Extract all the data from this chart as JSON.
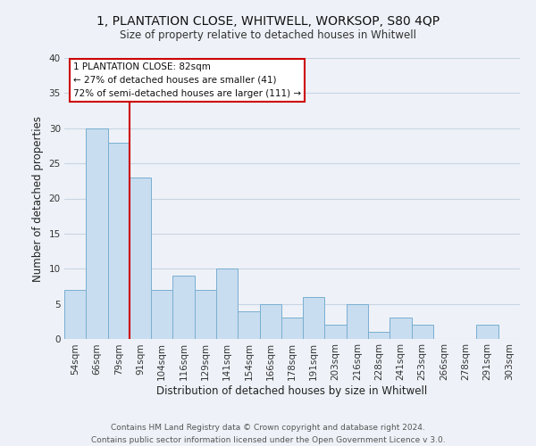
{
  "title_line1": "1, PLANTATION CLOSE, WHITWELL, WORKSOP, S80 4QP",
  "title_line2": "Size of property relative to detached houses in Whitwell",
  "xlabel": "Distribution of detached houses by size in Whitwell",
  "ylabel": "Number of detached properties",
  "footer_line1": "Contains HM Land Registry data © Crown copyright and database right 2024.",
  "footer_line2": "Contains public sector information licensed under the Open Government Licence v 3.0.",
  "bar_labels": [
    "54sqm",
    "66sqm",
    "79sqm",
    "91sqm",
    "104sqm",
    "116sqm",
    "129sqm",
    "141sqm",
    "154sqm",
    "166sqm",
    "178sqm",
    "191sqm",
    "203sqm",
    "216sqm",
    "228sqm",
    "241sqm",
    "253sqm",
    "266sqm",
    "278sqm",
    "291sqm",
    "303sqm"
  ],
  "bar_values": [
    7,
    30,
    28,
    23,
    7,
    9,
    7,
    10,
    4,
    5,
    3,
    6,
    2,
    5,
    1,
    3,
    2,
    0,
    0,
    2,
    0
  ],
  "bar_color": "#c8ddf0",
  "bar_edge_color": "#7aaed0",
  "grid_color": "#c8d4e4",
  "background_color": "#eef2f8",
  "annotation_box_color": "#ffffff",
  "annotation_border_color": "#cc0000",
  "annotation_text_line1": "1 PLANTATION CLOSE: 82sqm",
  "annotation_text_line2": "← 27% of detached houses are smaller (41)",
  "annotation_text_line3": "72% of semi-detached houses are larger (111) →",
  "vline_color": "#cc0000",
  "ylim": [
    0,
    40
  ],
  "yticks": [
    0,
    5,
    10,
    15,
    20,
    25,
    30,
    35,
    40
  ],
  "title_fontsize": 10,
  "subtitle_fontsize": 8.5,
  "axis_label_fontsize": 8.5,
  "tick_fontsize": 7.5,
  "footer_fontsize": 6.5
}
